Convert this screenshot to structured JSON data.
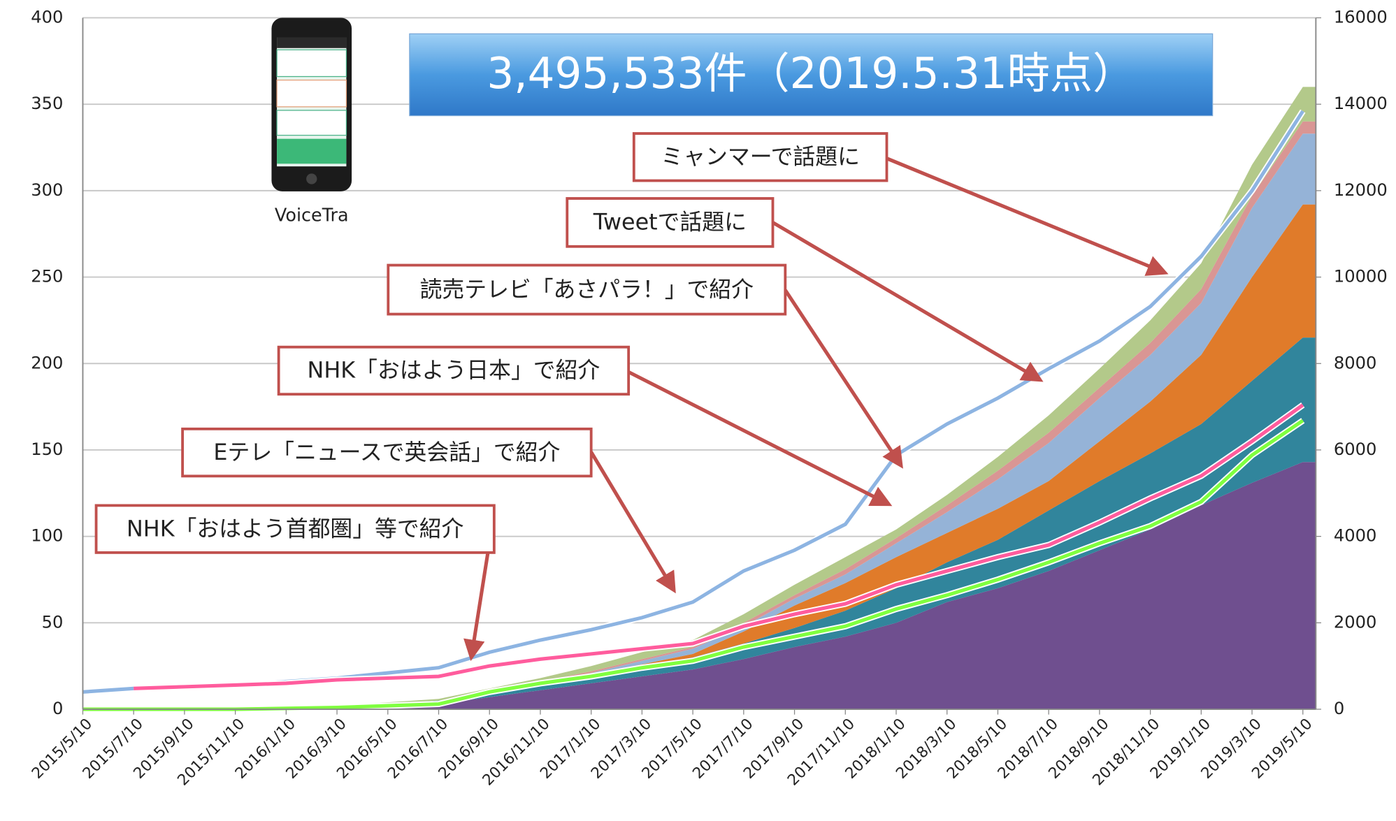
{
  "chart_data": {
    "type": "area",
    "stacked": true,
    "grid": true,
    "title": "3,495,533件（2019.5.31時点）",
    "image_label": "VoiceTra",
    "categories": [
      "2015/5/10",
      "2015/7/10",
      "2015/9/10",
      "2015/11/10",
      "2016/1/10",
      "2016/3/10",
      "2016/5/10",
      "2016/7/10",
      "2016/9/10",
      "2016/11/10",
      "2017/1/10",
      "2017/3/10",
      "2017/5/10",
      "2017/7/10",
      "2017/9/10",
      "2017/11/10",
      "2018/1/10",
      "2018/3/10",
      "2018/5/10",
      "2018/7/10",
      "2018/9/10",
      "2018/11/10",
      "2019/1/10",
      "2019/3/10",
      "2019/5/10"
    ],
    "ylim": [
      0,
      400
    ],
    "yticks": [
      0,
      50,
      100,
      150,
      200,
      250,
      300,
      350,
      400
    ],
    "y2lim": [
      0,
      16000
    ],
    "y2ticks": [
      0,
      2000,
      4000,
      6000,
      8000,
      10000,
      12000,
      14000,
      16000
    ],
    "series": [
      {
        "style": "area",
        "color": "#6f4f8f",
        "values": [
          0,
          0,
          0,
          0,
          0.5,
          1,
          2,
          3,
          7,
          11,
          15,
          19,
          23,
          29,
          36,
          42,
          50,
          62,
          70,
          80,
          92,
          104,
          118,
          131,
          143
        ]
      },
      {
        "style": "area",
        "color": "#31859c",
        "values": [
          0,
          0,
          0,
          0,
          0,
          0.5,
          1,
          2,
          2,
          3,
          4,
          5,
          7,
          9,
          11,
          15,
          20,
          23,
          28,
          35,
          40,
          44,
          47,
          59,
          72
        ]
      },
      {
        "style": "area",
        "color": "#e07b2a",
        "values": [
          0,
          0,
          0,
          0,
          0,
          0,
          0,
          0,
          0,
          0,
          1,
          2,
          2,
          7,
          13,
          16,
          18,
          17,
          18,
          17,
          23,
          30,
          40,
          60,
          77
        ]
      },
      {
        "style": "area",
        "color": "#95b3d7",
        "values": [
          0,
          0,
          0,
          0,
          0,
          0.5,
          0,
          0,
          1,
          1,
          1,
          2,
          3,
          3,
          4,
          5,
          8,
          12,
          17,
          22,
          25,
          27,
          30,
          40,
          41
        ]
      },
      {
        "style": "area",
        "color": "#d99694",
        "values": [
          0,
          0,
          0,
          0,
          0,
          0,
          0,
          0,
          0,
          1,
          1,
          1,
          1,
          2,
          2,
          3,
          3,
          4,
          5,
          6,
          6,
          7,
          8,
          7,
          7
        ]
      },
      {
        "style": "area",
        "color": "#b3c98a",
        "values": [
          0,
          0,
          0,
          0,
          0.5,
          0,
          1,
          1,
          2,
          2,
          3,
          4,
          4,
          5,
          6,
          7,
          5,
          6,
          8,
          10,
          11,
          13,
          15,
          18,
          20
        ]
      },
      {
        "style": "line",
        "color": "#8db4e2",
        "values": [
          10,
          12,
          13,
          14,
          16,
          18,
          21,
          24,
          33,
          40,
          46,
          53,
          62,
          80,
          92,
          107,
          147,
          165,
          180,
          197,
          213,
          233,
          262,
          300,
          346
        ]
      },
      {
        "style": "line",
        "color": "#ff5c9d",
        "values": [
          null,
          12,
          13,
          14,
          15,
          17,
          18,
          19,
          25,
          29,
          32,
          35,
          38,
          48,
          55,
          61,
          72,
          80,
          88,
          95,
          108,
          122,
          135,
          155,
          176
        ]
      },
      {
        "style": "line",
        "color": "#80ff40",
        "values": [
          0,
          0,
          0,
          0,
          0.5,
          1,
          2,
          3,
          10,
          15,
          19,
          24,
          28,
          36,
          42,
          48,
          58,
          66,
          75,
          85,
          96,
          106,
          120,
          147,
          167
        ]
      }
    ],
    "annotations": [
      "ミャンマーで話題に",
      "Tweetで話題に",
      "読売テレビ「あさパラ！」で紹介",
      "NHK「おはよう日本」で紹介",
      "Eテレ「ニュースで英会話」で紹介",
      "NHK「おはよう首都圏」等で紹介"
    ],
    "annotation_color": "#c0504d"
  }
}
